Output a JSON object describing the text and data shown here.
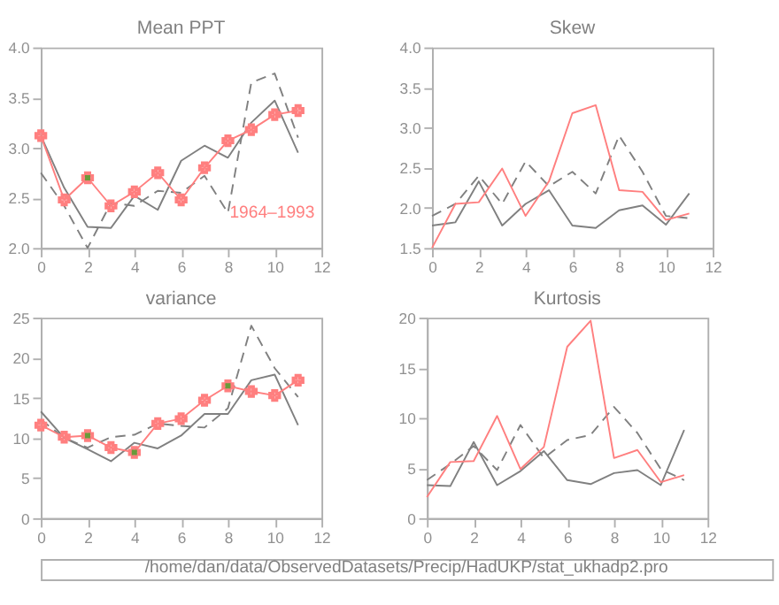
{
  "chart_data": [
    {
      "type": "line",
      "title": "Mean PPT",
      "x": [
        0,
        1,
        2,
        3,
        4,
        5,
        6,
        7,
        8,
        9,
        10,
        11
      ],
      "xlim": [
        0,
        12
      ],
      "xticks": [
        0,
        2,
        4,
        6,
        8,
        10,
        12
      ],
      "ylim": [
        2.0,
        4.0
      ],
      "yticks": [
        {
          "value": 2.0,
          "label": "2.0"
        },
        {
          "value": 2.5,
          "label": "2.5"
        },
        {
          "value": 3.0,
          "label": "3.0"
        },
        {
          "value": 3.5,
          "label": "3.5"
        },
        {
          "value": 4.0,
          "label": "4.0"
        }
      ],
      "series": [
        {
          "color": "#808080",
          "line_style": "solid",
          "values": [
            3.12,
            2.6,
            2.21,
            2.2,
            2.52,
            2.38,
            2.87,
            3.02,
            2.9,
            3.25,
            3.47,
            2.95
          ]
        },
        {
          "color": "#808080",
          "line_style": "dashed",
          "values": [
            2.75,
            2.42,
            2.0,
            2.45,
            2.42,
            2.57,
            2.55,
            2.72,
            2.35,
            3.65,
            3.74,
            3.1
          ]
        },
        {
          "name": "1964–1993",
          "color": "#ff7f7f",
          "line_style": "solid",
          "marker": "cross",
          "values": [
            3.12,
            2.48,
            2.7,
            2.42,
            2.56,
            2.75,
            2.48,
            2.8,
            3.07,
            3.18,
            3.33,
            3.37
          ]
        },
        {
          "type": "scatter",
          "color": "#6a9a3a",
          "marker": "square",
          "x": [
            2
          ],
          "values": [
            2.7
          ]
        }
      ]
    },
    {
      "type": "line",
      "title": "Skew",
      "x": [
        0,
        1,
        2,
        3,
        4,
        5,
        6,
        7,
        8,
        9,
        10,
        11
      ],
      "xlim": [
        0,
        12
      ],
      "xticks": [
        0,
        2,
        4,
        6,
        8,
        10,
        12
      ],
      "ylim": [
        1.5,
        4.0
      ],
      "yticks": [
        1.5,
        {
          "value": 2.0,
          "label": "2.0"
        },
        2.5,
        {
          "value": 3.0,
          "label": "3.0"
        },
        3.5,
        {
          "value": 4.0,
          "label": "4.0"
        }
      ],
      "series": [
        {
          "color": "#808080",
          "line_style": "solid",
          "values": [
            1.78,
            1.82,
            2.33,
            1.78,
            2.05,
            2.22,
            1.78,
            1.75,
            1.97,
            2.03,
            1.79,
            2.18
          ]
        },
        {
          "color": "#808080",
          "line_style": "dashed",
          "values": [
            1.9,
            2.05,
            2.4,
            2.05,
            2.58,
            2.27,
            2.45,
            2.18,
            2.9,
            2.45,
            1.9,
            1.87
          ]
        },
        {
          "color": "#ff7f7f",
          "line_style": "solid",
          "values": [
            1.5,
            2.05,
            2.07,
            2.49,
            1.9,
            2.33,
            3.18,
            3.28,
            2.22,
            2.2,
            1.85,
            1.93
          ]
        }
      ]
    },
    {
      "type": "line",
      "title": "variance",
      "x": [
        0,
        1,
        2,
        3,
        4,
        5,
        6,
        7,
        8,
        9,
        10,
        11
      ],
      "xlim": [
        0,
        12
      ],
      "xticks": [
        0,
        2,
        4,
        6,
        8,
        10,
        12
      ],
      "ylim": [
        0,
        25
      ],
      "yticks": [
        0,
        5,
        10,
        15,
        20,
        25
      ],
      "annotations": [
        "/home/dan/data/ObservedDatasets/Precip/HadUKP/stat_ukhadp2.pro"
      ],
      "series": [
        {
          "color": "#808080",
          "line_style": "solid",
          "values": [
            13.3,
            10.0,
            8.6,
            7.1,
            9.4,
            8.7,
            10.3,
            13.0,
            13.0,
            17.2,
            17.9,
            11.6
          ]
        },
        {
          "color": "#808080",
          "line_style": "dashed",
          "values": [
            12.3,
            10.0,
            8.8,
            10.1,
            10.4,
            11.8,
            11.5,
            11.3,
            13.7,
            24.0,
            18.7,
            15.1
          ]
        },
        {
          "color": "#ff7f7f",
          "line_style": "solid",
          "marker": "cross",
          "values": [
            11.6,
            10.1,
            10.3,
            8.8,
            8.2,
            11.8,
            12.4,
            14.7,
            16.5,
            15.8,
            15.3,
            17.2
          ]
        },
        {
          "type": "scatter",
          "color": "#6a9a3a",
          "marker": "square",
          "x": [
            2,
            4,
            8
          ],
          "values": [
            10.3,
            8.2,
            16.5
          ]
        }
      ]
    },
    {
      "type": "line",
      "title": "Kurtosis",
      "x": [
        0,
        1,
        2,
        3,
        4,
        5,
        6,
        7,
        8,
        9,
        10,
        11
      ],
      "xlim": [
        0,
        12
      ],
      "xticks": [
        0,
        2,
        4,
        6,
        8,
        10,
        12
      ],
      "ylim": [
        0,
        20
      ],
      "yticks": [
        0,
        5,
        10,
        15,
        20
      ],
      "series": [
        {
          "color": "#808080",
          "line_style": "solid",
          "values": [
            3.3,
            3.2,
            7.6,
            3.3,
            4.7,
            6.7,
            3.8,
            3.4,
            4.5,
            4.8,
            3.3,
            8.8
          ]
        },
        {
          "color": "#808080",
          "line_style": "dashed",
          "values": [
            3.8,
            5.4,
            7.2,
            4.8,
            9.3,
            6.0,
            7.8,
            8.3,
            11.1,
            8.5,
            4.9,
            3.8
          ]
        },
        {
          "color": "#ff7f7f",
          "line_style": "solid",
          "values": [
            2.1,
            5.6,
            5.7,
            10.2,
            4.9,
            7.1,
            17.1,
            19.7,
            6.0,
            6.8,
            3.6,
            4.3
          ]
        }
      ]
    }
  ]
}
